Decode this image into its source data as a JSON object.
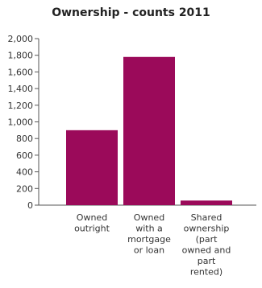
{
  "chart_data": {
    "type": "bar",
    "title": "Ownership - counts 2011",
    "xlabel": "",
    "ylabel": "",
    "categories": [
      [
        "Owned",
        "outright"
      ],
      [
        "Owned",
        "with a",
        "mortgage",
        "or loan"
      ],
      [
        "Shared",
        "ownership",
        "(part",
        "owned and",
        "part",
        "rented)"
      ]
    ],
    "values": [
      900,
      1780,
      55
    ],
    "ylim": [
      0,
      2000
    ],
    "yticks": [
      "0",
      "200",
      "400",
      "600",
      "800",
      "1,000",
      "1,200",
      "1,400",
      "1,600",
      "1,800",
      "2,000"
    ],
    "bar_color": "#9b0a5a",
    "grid": false
  }
}
